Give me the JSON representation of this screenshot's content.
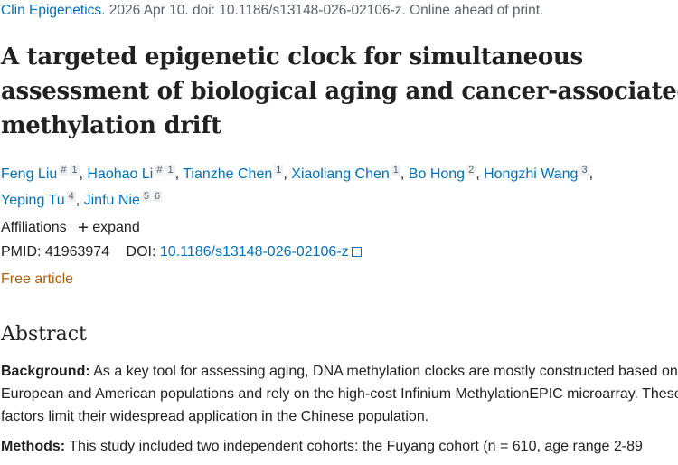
{
  "citation": {
    "journal": "Clin Epigenetics.",
    "rest": " 2026 Apr 10. doi: 10.1186/s13148-026-02106-z. Online ahead of print."
  },
  "title_lines": [
    "A targeted epigenetic clock for simultaneous",
    "assessment of biological aging and cancer-associated",
    "methylation drift"
  ],
  "authors": [
    {
      "name": "Feng Liu",
      "sup": [
        "#",
        "1"
      ]
    },
    {
      "name": "Haohao Li",
      "sup": [
        "#",
        "1"
      ]
    },
    {
      "name": "Tianzhe Chen",
      "sup": [
        "1"
      ]
    },
    {
      "name": "Xiaoliang Chen",
      "sup": [
        "1"
      ]
    },
    {
      "name": "Bo Hong",
      "sup": [
        "2"
      ]
    },
    {
      "name": "Hongzhi Wang",
      "sup": [
        "3"
      ]
    },
    {
      "name": "Yeping Tu",
      "sup": [
        "4"
      ]
    },
    {
      "name": "Jinfu Nie",
      "sup": [
        "5",
        "6"
      ]
    }
  ],
  "affiliations": {
    "label": "Affiliations",
    "expand": "expand",
    "icon": "plus-icon"
  },
  "ids": {
    "pmid_label": "PMID:",
    "pmid": "41963974",
    "doi_label": "DOI:",
    "doi": "10.1186/s13148-026-02106-z",
    "icon": "external-link-icon"
  },
  "free_article": "Free article",
  "abstract": {
    "heading": "Abstract",
    "background_label": "Background:",
    "background": " As a key tool for assessing aging, DNA methylation clocks are mostly constructed based on European and American populations and rely on the high-cost Infinium MethylationEPIC microarray. These factors limit their widespread application in the Chinese population.",
    "methods_label": "Methods:",
    "methods": " This study included two independent cohorts: the Fuyang cohort (n = 610, age range 2-89"
  }
}
